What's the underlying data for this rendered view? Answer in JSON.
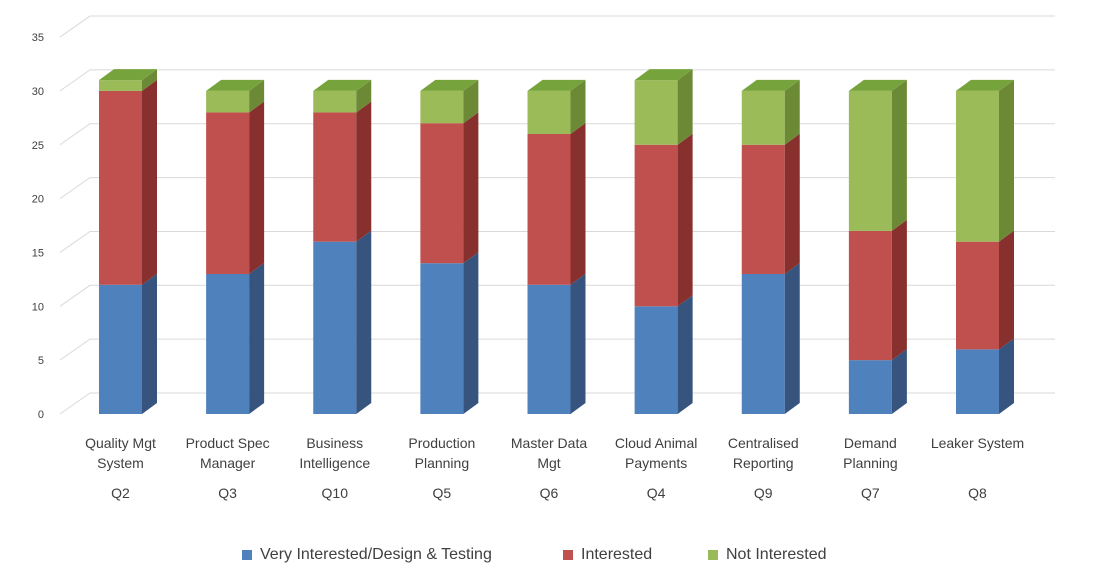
{
  "chart_data": {
    "type": "bar",
    "stacked": true,
    "style": "3d",
    "categories": [
      [
        "Quality Mgt",
        "System"
      ],
      [
        "Product Spec",
        "Manager"
      ],
      [
        "Business",
        "Intelligence"
      ],
      [
        "Production",
        "Planning"
      ],
      [
        "Master Data",
        "Mgt"
      ],
      [
        "Cloud Animal",
        "Payments"
      ],
      [
        "Centralised",
        "Reporting"
      ],
      [
        "Demand",
        "Planning"
      ],
      [
        "Leaker System"
      ]
    ],
    "question_labels": [
      "Q2",
      "Q3",
      "Q10",
      "Q5",
      "Q6",
      "Q4",
      "Q9",
      "Q7",
      "Q8"
    ],
    "series": [
      {
        "name": "Very Interested/Design & Testing",
        "color": "#4f81bd",
        "values": [
          12,
          13,
          16,
          14,
          12,
          10,
          13,
          5,
          6
        ]
      },
      {
        "name": "Interested",
        "color": "#c0504d",
        "values": [
          18,
          15,
          12,
          13,
          14,
          15,
          12,
          12,
          10
        ]
      },
      {
        "name": "Not Interested",
        "color": "#9bbb59",
        "values": [
          1,
          2,
          2,
          3,
          4,
          6,
          5,
          13,
          14
        ]
      }
    ],
    "title": "",
    "xlabel": "",
    "ylabel": "",
    "ylim": [
      0,
      35
    ],
    "yticks": [
      0,
      5,
      10,
      15,
      20,
      25,
      30,
      35
    ],
    "grid": true,
    "legend_position": "bottom"
  }
}
